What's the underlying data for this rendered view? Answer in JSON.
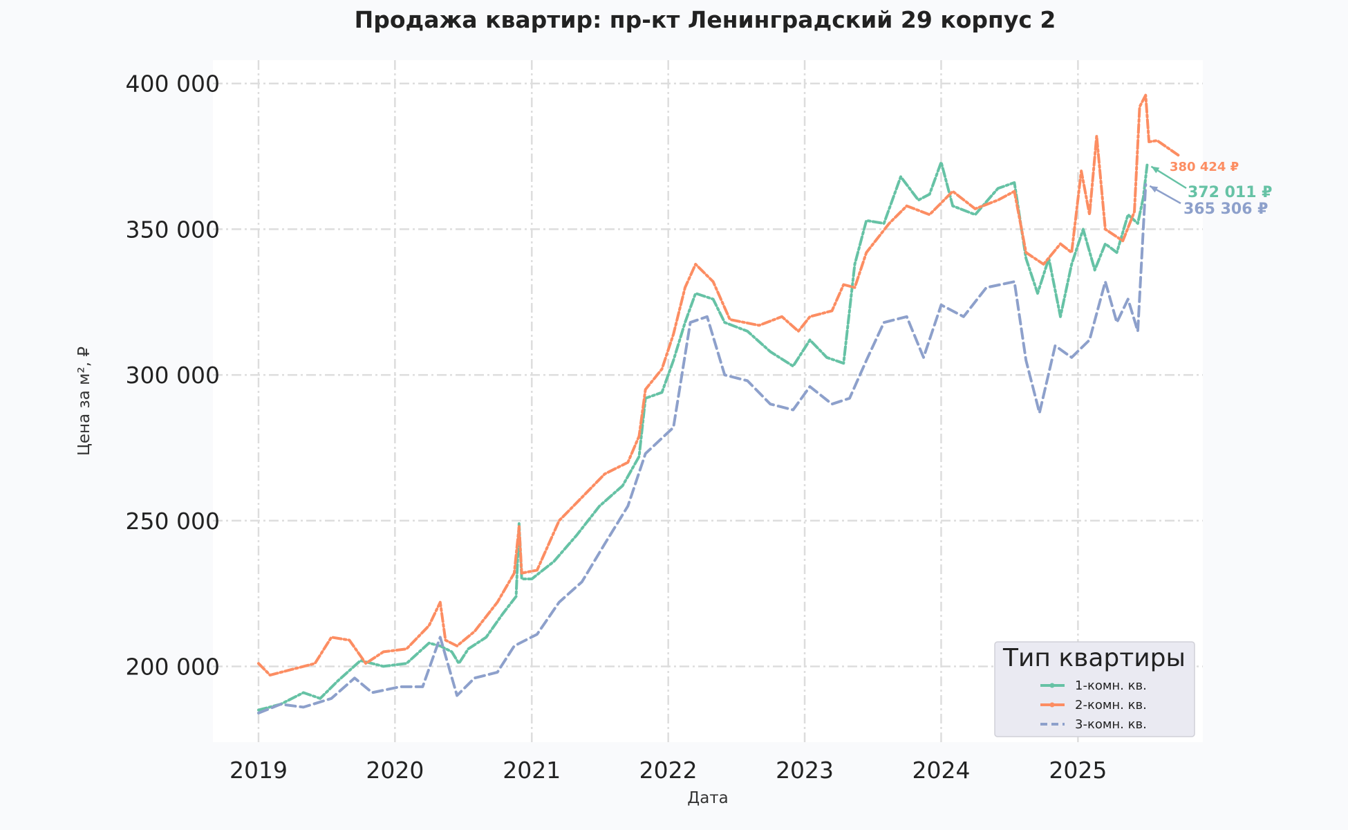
{
  "chart_data": {
    "type": "line",
    "title": "Продажа квартир: пр-кт Ленинградский 29 корпус 2",
    "xlabel": "Дата",
    "ylabel": "Цена за м², ₽",
    "x_range": [
      "2018-09-01",
      "2025-12-01"
    ],
    "ylim": [
      174000,
      408000
    ],
    "x_ticks": [
      {
        "date": "2019-01-01",
        "label": "2019"
      },
      {
        "date": "2020-01-01",
        "label": "2020"
      },
      {
        "date": "2021-01-01",
        "label": "2021"
      },
      {
        "date": "2022-01-01",
        "label": "2022"
      },
      {
        "date": "2023-01-01",
        "label": "2023"
      },
      {
        "date": "2024-01-01",
        "label": "2024"
      },
      {
        "date": "2025-01-01",
        "label": "2025"
      }
    ],
    "y_ticks": [
      {
        "value": 200000,
        "label": "200 000"
      },
      {
        "value": 250000,
        "label": "250 000"
      },
      {
        "value": 300000,
        "label": "300 000"
      },
      {
        "value": 350000,
        "label": "350 000"
      },
      {
        "value": 400000,
        "label": "400 000"
      }
    ],
    "grid": true,
    "legend": {
      "title": "Тип квартиры",
      "position": "lower-right"
    },
    "series": [
      {
        "name": "1-комн. кв.",
        "color": "#66c2a5",
        "style": "dashed-dots",
        "points": [
          [
            "2019-01-01",
            185000
          ],
          [
            "2019-03-01",
            187000
          ],
          [
            "2019-05-01",
            191000
          ],
          [
            "2019-06-15",
            189000
          ],
          [
            "2019-08-01",
            195000
          ],
          [
            "2019-10-01",
            202000
          ],
          [
            "2019-12-01",
            200000
          ],
          [
            "2020-02-01",
            201000
          ],
          [
            "2020-04-01",
            208000
          ],
          [
            "2020-05-01",
            207000
          ],
          [
            "2020-06-01",
            205000
          ],
          [
            "2020-06-20",
            201000
          ],
          [
            "2020-07-15",
            206000
          ],
          [
            "2020-09-01",
            210000
          ],
          [
            "2020-10-15",
            218000
          ],
          [
            "2020-11-20",
            224000
          ],
          [
            "2020-11-28",
            249000
          ],
          [
            "2020-12-05",
            230000
          ],
          [
            "2021-01-01",
            230000
          ],
          [
            "2021-03-01",
            236000
          ],
          [
            "2021-05-01",
            245000
          ],
          [
            "2021-07-01",
            255000
          ],
          [
            "2021-09-01",
            262000
          ],
          [
            "2021-10-15",
            272000
          ],
          [
            "2021-11-01",
            292000
          ],
          [
            "2021-12-15",
            294000
          ],
          [
            "2022-01-15",
            305000
          ],
          [
            "2022-02-15",
            318000
          ],
          [
            "2022-03-15",
            328000
          ],
          [
            "2022-05-01",
            326000
          ],
          [
            "2022-06-01",
            318000
          ],
          [
            "2022-08-01",
            315000
          ],
          [
            "2022-10-01",
            308000
          ],
          [
            "2022-12-01",
            303000
          ],
          [
            "2023-01-15",
            312000
          ],
          [
            "2023-03-01",
            306000
          ],
          [
            "2023-04-15",
            304000
          ],
          [
            "2023-05-15",
            338000
          ],
          [
            "2023-06-15",
            353000
          ],
          [
            "2023-08-01",
            352000
          ],
          [
            "2023-09-15",
            368000
          ],
          [
            "2023-11-01",
            360000
          ],
          [
            "2023-12-01",
            362000
          ],
          [
            "2024-01-01",
            373000
          ],
          [
            "2024-02-01",
            358000
          ],
          [
            "2024-04-01",
            355000
          ],
          [
            "2024-06-01",
            364000
          ],
          [
            "2024-07-15",
            366000
          ],
          [
            "2024-08-15",
            340000
          ],
          [
            "2024-09-15",
            328000
          ],
          [
            "2024-10-15",
            340000
          ],
          [
            "2024-11-15",
            320000
          ],
          [
            "2024-12-15",
            338000
          ],
          [
            "2025-01-15",
            350000
          ],
          [
            "2025-02-15",
            336000
          ],
          [
            "2025-03-15",
            345000
          ],
          [
            "2025-04-15",
            342000
          ],
          [
            "2025-05-15",
            355000
          ],
          [
            "2025-06-10",
            352000
          ],
          [
            "2025-06-25",
            361000
          ],
          [
            "2025-07-05",
            372011
          ]
        ]
      },
      {
        "name": "2-комн. кв.",
        "color": "#fc8d62",
        "style": "dashed-dots",
        "points": [
          [
            "2019-01-01",
            201000
          ],
          [
            "2019-02-01",
            197000
          ],
          [
            "2019-04-01",
            199000
          ],
          [
            "2019-06-01",
            201000
          ],
          [
            "2019-07-15",
            210000
          ],
          [
            "2019-09-01",
            209000
          ],
          [
            "2019-10-15",
            201000
          ],
          [
            "2019-12-01",
            205000
          ],
          [
            "2020-02-01",
            206000
          ],
          [
            "2020-04-01",
            214000
          ],
          [
            "2020-05-01",
            222000
          ],
          [
            "2020-05-15",
            209000
          ],
          [
            "2020-06-15",
            207000
          ],
          [
            "2020-08-01",
            212000
          ],
          [
            "2020-10-01",
            222000
          ],
          [
            "2020-11-15",
            232000
          ],
          [
            "2020-11-28",
            248000
          ],
          [
            "2020-12-05",
            232000
          ],
          [
            "2021-01-15",
            233000
          ],
          [
            "2021-03-15",
            250000
          ],
          [
            "2021-05-15",
            258000
          ],
          [
            "2021-07-15",
            266000
          ],
          [
            "2021-09-15",
            270000
          ],
          [
            "2021-10-15",
            279000
          ],
          [
            "2021-11-01",
            295000
          ],
          [
            "2021-12-15",
            302000
          ],
          [
            "2022-01-15",
            314000
          ],
          [
            "2022-02-15",
            330000
          ],
          [
            "2022-03-15",
            338000
          ],
          [
            "2022-05-01",
            332000
          ],
          [
            "2022-06-15",
            319000
          ],
          [
            "2022-09-01",
            317000
          ],
          [
            "2022-11-01",
            320000
          ],
          [
            "2022-12-15",
            315000
          ],
          [
            "2023-01-15",
            320000
          ],
          [
            "2023-03-15",
            322000
          ],
          [
            "2023-04-15",
            331000
          ],
          [
            "2023-05-15",
            330000
          ],
          [
            "2023-06-15",
            342000
          ],
          [
            "2023-08-15",
            352000
          ],
          [
            "2023-10-01",
            358000
          ],
          [
            "2023-12-01",
            355000
          ],
          [
            "2024-02-01",
            363000
          ],
          [
            "2024-04-01",
            357000
          ],
          [
            "2024-06-01",
            360000
          ],
          [
            "2024-07-15",
            363000
          ],
          [
            "2024-08-15",
            342000
          ],
          [
            "2024-10-01",
            338000
          ],
          [
            "2024-11-15",
            345000
          ],
          [
            "2024-12-15",
            342000
          ],
          [
            "2025-01-10",
            370000
          ],
          [
            "2025-02-01",
            355000
          ],
          [
            "2025-02-20",
            382000
          ],
          [
            "2025-03-15",
            350000
          ],
          [
            "2025-05-01",
            346000
          ],
          [
            "2025-06-01",
            356000
          ],
          [
            "2025-06-15",
            392000
          ],
          [
            "2025-07-01",
            396000
          ],
          [
            "2025-07-10",
            380000
          ],
          [
            "2025-08-01",
            380424
          ],
          [
            "2025-10-01",
            375000
          ]
        ]
      },
      {
        "name": "3-комн. кв.",
        "color": "#8da0cb",
        "style": "dashed",
        "points": [
          [
            "2019-01-01",
            184000
          ],
          [
            "2019-03-01",
            187000
          ],
          [
            "2019-05-01",
            186000
          ],
          [
            "2019-07-15",
            189000
          ],
          [
            "2019-09-15",
            196000
          ],
          [
            "2019-11-01",
            191000
          ],
          [
            "2020-01-15",
            193000
          ],
          [
            "2020-03-15",
            193000
          ],
          [
            "2020-05-01",
            210000
          ],
          [
            "2020-06-15",
            190000
          ],
          [
            "2020-08-01",
            196000
          ],
          [
            "2020-10-01",
            198000
          ],
          [
            "2020-11-15",
            207000
          ],
          [
            "2021-01-15",
            211000
          ],
          [
            "2021-03-15",
            222000
          ],
          [
            "2021-05-15",
            229000
          ],
          [
            "2021-07-15",
            242000
          ],
          [
            "2021-09-15",
            255000
          ],
          [
            "2021-11-01",
            273000
          ],
          [
            "2022-01-15",
            282000
          ],
          [
            "2022-03-01",
            318000
          ],
          [
            "2022-04-15",
            320000
          ],
          [
            "2022-06-01",
            300000
          ],
          [
            "2022-08-01",
            298000
          ],
          [
            "2022-10-01",
            290000
          ],
          [
            "2022-12-01",
            288000
          ],
          [
            "2023-01-15",
            296000
          ],
          [
            "2023-03-15",
            290000
          ],
          [
            "2023-05-01",
            292000
          ],
          [
            "2023-06-15",
            305000
          ],
          [
            "2023-08-01",
            318000
          ],
          [
            "2023-10-01",
            320000
          ],
          [
            "2023-11-15",
            306000
          ],
          [
            "2024-01-01",
            324000
          ],
          [
            "2024-03-01",
            320000
          ],
          [
            "2024-05-01",
            330000
          ],
          [
            "2024-07-15",
            332000
          ],
          [
            "2024-08-15",
            305000
          ],
          [
            "2024-09-20",
            287000
          ],
          [
            "2024-11-01",
            310000
          ],
          [
            "2024-12-15",
            306000
          ],
          [
            "2025-02-01",
            312000
          ],
          [
            "2025-03-15",
            332000
          ],
          [
            "2025-04-15",
            318000
          ],
          [
            "2025-05-15",
            326000
          ],
          [
            "2025-06-10",
            315000
          ],
          [
            "2025-07-01",
            365306
          ]
        ]
      }
    ],
    "annotations": [
      {
        "text": "380 424 ₽",
        "series": 1,
        "color": "#fc8d62"
      },
      {
        "text": "372 011 ₽",
        "series": 0,
        "color": "#66c2a5"
      },
      {
        "text": "365 306 ₽",
        "series": 2,
        "color": "#8da0cb"
      }
    ]
  }
}
